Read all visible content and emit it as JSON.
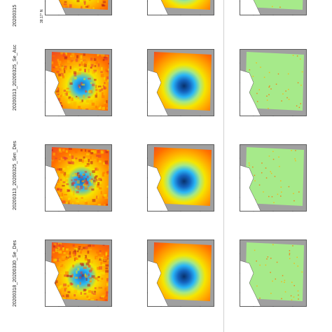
{
  "row_labels": [
    "20200315",
    "20200313_20200325_Se_Asc",
    "20200313_20200325_Sen_Des",
    "20200318_20200330_Se_Des"
  ],
  "lat_label": "38.17° N",
  "colormaps": {
    "jet": [
      "#08306b",
      "#1565c0",
      "#29b6f6",
      "#4dd0e1",
      "#a5e887",
      "#f5e600",
      "#ffb300",
      "#ff6f00",
      "#e53935",
      "#b71c1c"
    ],
    "residual_base": "#a6ea8a",
    "mask": "#a0a0a0"
  }
}
